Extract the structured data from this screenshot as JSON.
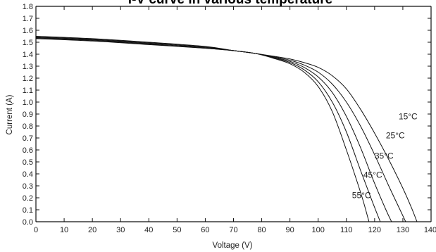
{
  "chart_data": {
    "type": "line",
    "title": "I-V curve in various temperature",
    "xlabel": "Voltage (V)",
    "ylabel": "Current (A)",
    "xlim": [
      0,
      140
    ],
    "ylim": [
      0,
      1.8
    ],
    "x_ticks": [
      "0",
      "10",
      "20",
      "30",
      "40",
      "50",
      "60",
      "70",
      "80",
      "90",
      "100",
      "110",
      "120",
      "130",
      "140"
    ],
    "y_ticks": [
      "0.0",
      "0.1",
      "0.2",
      "0.3",
      "0.4",
      "0.5",
      "0.6",
      "0.7",
      "0.8",
      "0.9",
      "1.0",
      "1.1",
      "1.2",
      "1.3",
      "1.4",
      "1.5",
      "1.6",
      "1.7",
      "1.8"
    ],
    "grid": false,
    "legend": "none",
    "series": [
      {
        "name": "15°C",
        "x": [
          0,
          20,
          40,
          60,
          70,
          78,
          85,
          90,
          95,
          100,
          105,
          110,
          115,
          120,
          125,
          130,
          133,
          135
        ],
        "y": [
          1.53,
          1.51,
          1.48,
          1.45,
          1.43,
          1.405,
          1.38,
          1.36,
          1.33,
          1.29,
          1.22,
          1.11,
          0.94,
          0.74,
          0.52,
          0.28,
          0.12,
          0.0
        ]
      },
      {
        "name": "25°C",
        "x": [
          0,
          20,
          40,
          60,
          70,
          78,
          85,
          90,
          95,
          100,
          105,
          110,
          115,
          120,
          125,
          129,
          131
        ],
        "y": [
          1.535,
          1.515,
          1.485,
          1.45,
          1.43,
          1.405,
          1.375,
          1.35,
          1.31,
          1.25,
          1.15,
          1.0,
          0.8,
          0.56,
          0.3,
          0.1,
          0.0
        ]
      },
      {
        "name": "35°C",
        "x": [
          0,
          20,
          40,
          60,
          70,
          78,
          85,
          90,
          95,
          100,
          105,
          110,
          115,
          120,
          124,
          126
        ],
        "y": [
          1.54,
          1.52,
          1.49,
          1.455,
          1.43,
          1.405,
          1.37,
          1.34,
          1.29,
          1.21,
          1.08,
          0.88,
          0.62,
          0.32,
          0.1,
          0.0
        ]
      },
      {
        "name": "45°C",
        "x": [
          0,
          20,
          40,
          60,
          70,
          78,
          85,
          90,
          95,
          100,
          105,
          110,
          115,
          119,
          122
        ],
        "y": [
          1.545,
          1.525,
          1.495,
          1.46,
          1.43,
          1.405,
          1.365,
          1.33,
          1.27,
          1.17,
          1.0,
          0.75,
          0.43,
          0.18,
          0.0
        ]
      },
      {
        "name": "55°C",
        "x": [
          0,
          20,
          40,
          60,
          70,
          78,
          85,
          90,
          95,
          100,
          105,
          110,
          114,
          116,
          118
        ],
        "y": [
          1.55,
          1.53,
          1.5,
          1.465,
          1.43,
          1.405,
          1.36,
          1.32,
          1.25,
          1.13,
          0.92,
          0.6,
          0.32,
          0.17,
          0.0
        ]
      }
    ],
    "series_labels": [
      {
        "text": "15°C",
        "x": 128.5,
        "y": 0.88
      },
      {
        "text": "25°C",
        "x": 124.0,
        "y": 0.72
      },
      {
        "text": "35°C",
        "x": 120.0,
        "y": 0.55
      },
      {
        "text": "45°C",
        "x": 116.0,
        "y": 0.39
      },
      {
        "text": "55°C",
        "x": 112.0,
        "y": 0.22
      }
    ]
  }
}
